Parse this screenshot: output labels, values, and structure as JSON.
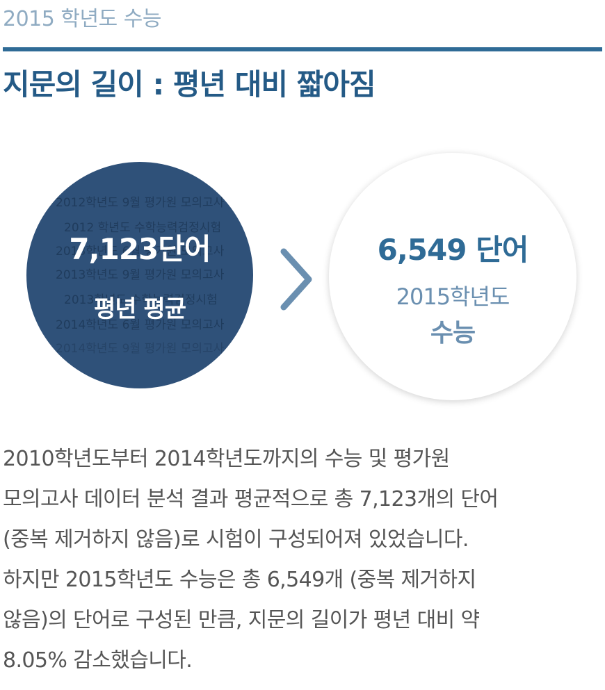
{
  "kicker": "2015 학년도 수능",
  "headline": "지문의 길이 : 평년 대비 짧아짐",
  "left_circle": {
    "value": "7,123단어",
    "label": "평년 평균",
    "background_lines": [
      "2012학년도 9월 평가원 모의고사",
      "2012 학년도 수학능력검정시험",
      "2013학년도 6월 평가원 모의고사",
      "2013학년도 9월 평가원 모의고사",
      "2013학년도 수학능력검정시험",
      "2014학년도 6월 평가원 모의고사",
      "2014학년도 9월 평가원 모의고사"
    ]
  },
  "arrow_icon": "chevron-right",
  "right_circle": {
    "value": "6,549 단어",
    "year": "2015학년도",
    "label": "수능"
  },
  "body_lines": [
    "2010학년도부터 2014학년도까지의 수능 및 평가원",
    "모의고사 데이터 분석 결과 평균적으로 총 7,123개의 단어",
    "(중복 제거하지 않음)로 시험이 구성되어져 있었습니다.",
    "하지만 2015학년도 수능은 총 6,549개 (중복 제거하지",
    "않음)의 단어로 구성된 만큼, 지문의 길이가 평년 대비 약",
    "8.05% 감소했습니다."
  ],
  "colors": {
    "accent": "#2f6b96",
    "dark_circle": "#2f5179",
    "muted_blue": "#6a8fb0",
    "body_text": "#555555"
  }
}
